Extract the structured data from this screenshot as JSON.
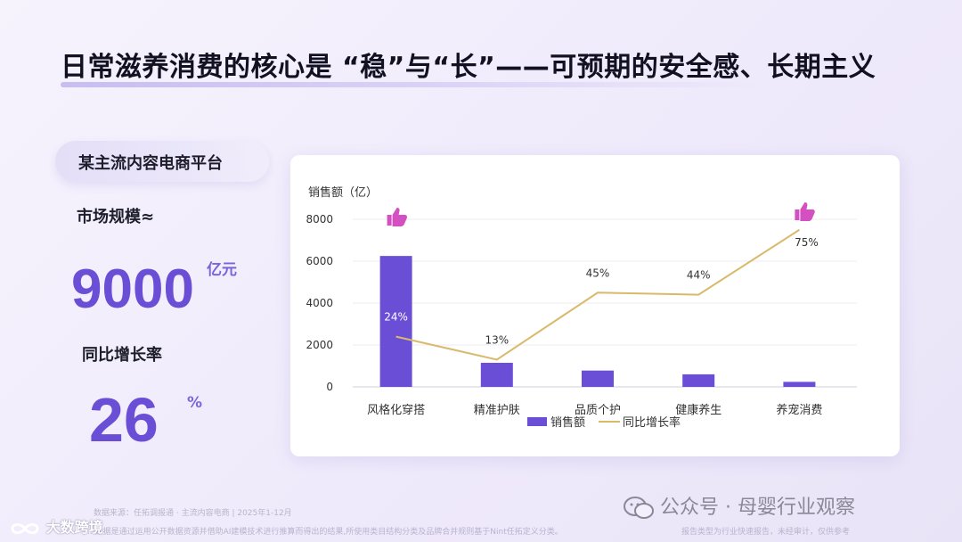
{
  "header": {
    "title": "日常滋养消费的核心是 “稳”与“长”——可预期的安全感、长期主义"
  },
  "stats": {
    "platform": "某主流内容电商平台",
    "market_label": "市场规模≈",
    "market_value": "9000",
    "market_unit": "亿元",
    "growth_label": "同比增长率",
    "growth_value": "26",
    "growth_unit": "%"
  },
  "chart_data": {
    "type": "bar",
    "ylabel": "销售额（亿）",
    "ylim": [
      0,
      8000
    ],
    "yticks": [
      0,
      2000,
      4000,
      6000,
      8000
    ],
    "categories": [
      "风格化穿搭",
      "精准护肤",
      "品质个护",
      "健康养生",
      "养宠消费"
    ],
    "series": [
      {
        "name": "销售额",
        "type": "bar",
        "color": "#6a4fd6",
        "values": [
          6250,
          1150,
          780,
          600,
          240
        ]
      },
      {
        "name": "同比增长率",
        "type": "line",
        "color": "#d9b96a",
        "values": [
          24,
          13,
          45,
          44,
          75
        ],
        "labels": [
          "24%",
          "13%",
          "45%",
          "44%",
          "75%"
        ]
      }
    ],
    "highlight_icons": [
      "thumbs-up-icon",
      "thumbs-up-icon"
    ],
    "legend_position": "bottom",
    "grid": true
  },
  "footer": {
    "source": "数据来源：任拓调报通 · 主流内容电商 | 2025年1-12月",
    "method": "...数据是通过运用公开数据资源并借助AI建模技术进行推算而得出的结果,所使用类目结构分类及品牌合并规则基于Nint任拓定义分类。",
    "disclaimer": "报告类型为行业快速报告，未经审计，仅供参考",
    "watermark_brand": "公众号 · 母婴行业观察",
    "watermark_left": "大数跨境"
  }
}
